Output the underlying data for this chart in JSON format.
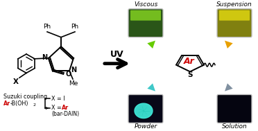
{
  "bg_color": "#ffffff",
  "uv_text": "UV",
  "labels": {
    "viscous": "Viscous",
    "suspension": "Suspension",
    "powder": "Powder",
    "solution": "Solution"
  },
  "arrow_colors": {
    "viscous": "#66cc00",
    "suspension": "#e8a000",
    "powder": "#40c8c8",
    "solution": "#8090a0"
  },
  "ar_color": "#cc0000",
  "bardain_text": "(bar-DAIN)"
}
